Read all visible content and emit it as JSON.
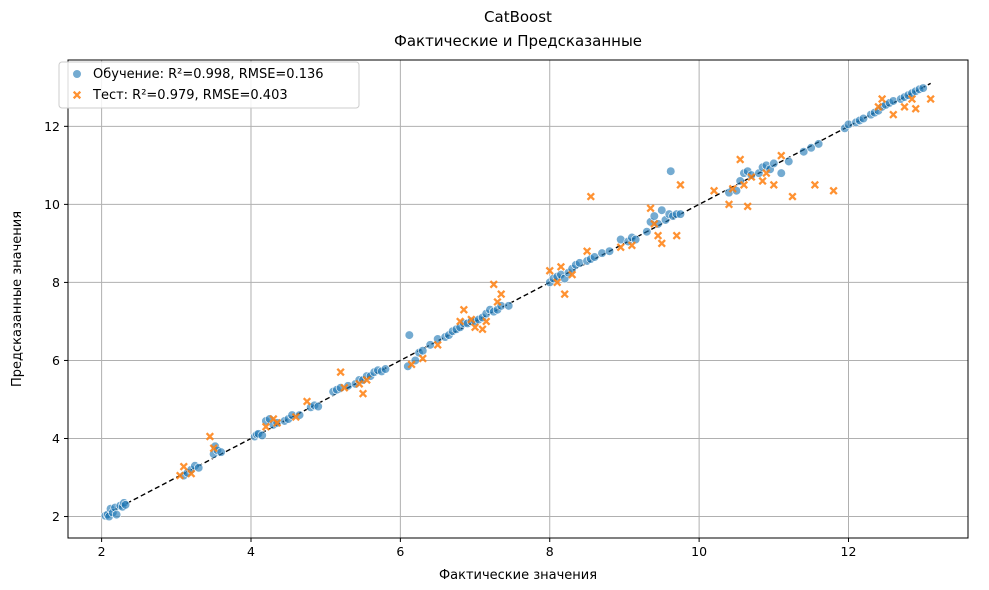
{
  "chart_data": {
    "type": "scatter",
    "title": "CatBoost",
    "subtitle": "Фактические и Предсказанные",
    "xlabel": "Фактические значения",
    "ylabel": "Предсказанные значения",
    "xlim": [
      1.55,
      13.6
    ],
    "ylim": [
      1.45,
      13.7
    ],
    "x_ticks": [
      2,
      4,
      6,
      8,
      10,
      12
    ],
    "y_ticks": [
      2,
      4,
      6,
      8,
      10,
      12
    ],
    "grid": true,
    "legend_position": "top-left",
    "reference_line": {
      "style": "dashed",
      "color": "#000000",
      "x": [
        2.05,
        13.1
      ],
      "y": [
        2.05,
        13.1
      ]
    },
    "series": [
      {
        "name": "Обучение: R²=0.998, RMSE=0.136",
        "marker": "circle",
        "color": "#1f77b4",
        "points": [
          [
            2.05,
            2.02
          ],
          [
            2.08,
            2.05
          ],
          [
            2.1,
            2.0
          ],
          [
            2.12,
            2.2
          ],
          [
            2.15,
            2.1
          ],
          [
            2.18,
            2.23
          ],
          [
            2.2,
            2.05
          ],
          [
            2.25,
            2.28
          ],
          [
            2.28,
            2.25
          ],
          [
            2.3,
            2.35
          ],
          [
            2.32,
            2.3
          ],
          [
            3.1,
            3.05
          ],
          [
            3.15,
            3.12
          ],
          [
            3.2,
            3.2
          ],
          [
            3.25,
            3.3
          ],
          [
            3.3,
            3.25
          ],
          [
            3.5,
            3.6
          ],
          [
            3.52,
            3.8
          ],
          [
            3.55,
            3.7
          ],
          [
            3.6,
            3.65
          ],
          [
            4.05,
            4.05
          ],
          [
            4.08,
            4.1
          ],
          [
            4.1,
            4.12
          ],
          [
            4.15,
            4.08
          ],
          [
            4.2,
            4.45
          ],
          [
            4.25,
            4.5
          ],
          [
            4.3,
            4.35
          ],
          [
            4.35,
            4.4
          ],
          [
            4.45,
            4.45
          ],
          [
            4.5,
            4.5
          ],
          [
            4.55,
            4.6
          ],
          [
            4.65,
            4.6
          ],
          [
            4.8,
            4.8
          ],
          [
            4.85,
            4.85
          ],
          [
            4.9,
            4.82
          ],
          [
            5.1,
            5.2
          ],
          [
            5.15,
            5.25
          ],
          [
            5.2,
            5.3
          ],
          [
            5.3,
            5.35
          ],
          [
            5.4,
            5.4
          ],
          [
            5.45,
            5.5
          ],
          [
            5.5,
            5.5
          ],
          [
            5.55,
            5.6
          ],
          [
            5.6,
            5.6
          ],
          [
            5.65,
            5.7
          ],
          [
            5.7,
            5.75
          ],
          [
            5.75,
            5.72
          ],
          [
            5.8,
            5.78
          ],
          [
            6.1,
            5.85
          ],
          [
            6.12,
            6.65
          ],
          [
            6.2,
            6.0
          ],
          [
            6.25,
            6.2
          ],
          [
            6.3,
            6.25
          ],
          [
            6.4,
            6.4
          ],
          [
            6.5,
            6.55
          ],
          [
            6.6,
            6.6
          ],
          [
            6.65,
            6.65
          ],
          [
            6.7,
            6.75
          ],
          [
            6.75,
            6.8
          ],
          [
            6.8,
            6.85
          ],
          [
            6.85,
            6.95
          ],
          [
            6.9,
            6.95
          ],
          [
            6.95,
            7.0
          ],
          [
            7.0,
            7.0
          ],
          [
            7.05,
            7.05
          ],
          [
            7.1,
            7.1
          ],
          [
            7.15,
            7.2
          ],
          [
            7.2,
            7.3
          ],
          [
            7.25,
            7.25
          ],
          [
            7.3,
            7.3
          ],
          [
            7.35,
            7.4
          ],
          [
            7.45,
            7.4
          ],
          [
            8.0,
            8.0
          ],
          [
            8.05,
            8.1
          ],
          [
            8.1,
            8.15
          ],
          [
            8.15,
            8.2
          ],
          [
            8.2,
            8.1
          ],
          [
            8.25,
            8.25
          ],
          [
            8.3,
            8.35
          ],
          [
            8.35,
            8.45
          ],
          [
            8.4,
            8.5
          ],
          [
            8.5,
            8.55
          ],
          [
            8.55,
            8.6
          ],
          [
            8.6,
            8.65
          ],
          [
            8.7,
            8.75
          ],
          [
            8.8,
            8.8
          ],
          [
            8.95,
            9.1
          ],
          [
            9.05,
            9.05
          ],
          [
            9.1,
            9.15
          ],
          [
            9.15,
            9.1
          ],
          [
            9.3,
            9.3
          ],
          [
            9.35,
            9.55
          ],
          [
            9.4,
            9.7
          ],
          [
            9.45,
            9.5
          ],
          [
            9.5,
            9.85
          ],
          [
            9.55,
            9.6
          ],
          [
            9.6,
            9.75
          ],
          [
            9.62,
            10.85
          ],
          [
            9.65,
            9.7
          ],
          [
            9.7,
            9.75
          ],
          [
            9.75,
            9.75
          ],
          [
            10.4,
            10.3
          ],
          [
            10.5,
            10.35
          ],
          [
            10.55,
            10.6
          ],
          [
            10.6,
            10.8
          ],
          [
            10.65,
            10.85
          ],
          [
            10.7,
            10.75
          ],
          [
            10.8,
            10.8
          ],
          [
            10.85,
            10.95
          ],
          [
            10.9,
            11.0
          ],
          [
            10.95,
            10.9
          ],
          [
            11.0,
            11.05
          ],
          [
            11.1,
            10.8
          ],
          [
            11.2,
            11.1
          ],
          [
            11.4,
            11.35
          ],
          [
            11.5,
            11.45
          ],
          [
            11.6,
            11.55
          ],
          [
            11.95,
            11.95
          ],
          [
            12.0,
            12.05
          ],
          [
            12.1,
            12.1
          ],
          [
            12.15,
            12.15
          ],
          [
            12.2,
            12.2
          ],
          [
            12.3,
            12.3
          ],
          [
            12.35,
            12.35
          ],
          [
            12.4,
            12.4
          ],
          [
            12.45,
            12.5
          ],
          [
            12.5,
            12.55
          ],
          [
            12.55,
            12.6
          ],
          [
            12.6,
            12.65
          ],
          [
            12.7,
            12.7
          ],
          [
            12.75,
            12.75
          ],
          [
            12.8,
            12.8
          ],
          [
            12.85,
            12.85
          ],
          [
            12.9,
            12.9
          ],
          [
            12.95,
            12.95
          ],
          [
            13.0,
            12.98
          ]
        ]
      },
      {
        "name": "Тест: R²=0.979, RMSE=0.403",
        "marker": "x",
        "color": "#ff7f0e",
        "points": [
          [
            3.05,
            3.05
          ],
          [
            3.1,
            3.28
          ],
          [
            3.2,
            3.1
          ],
          [
            3.45,
            4.05
          ],
          [
            3.5,
            3.75
          ],
          [
            4.2,
            4.3
          ],
          [
            4.3,
            4.5
          ],
          [
            4.35,
            4.4
          ],
          [
            4.6,
            4.55
          ],
          [
            4.75,
            4.95
          ],
          [
            5.2,
            5.7
          ],
          [
            5.25,
            5.3
          ],
          [
            5.45,
            5.4
          ],
          [
            5.5,
            5.15
          ],
          [
            5.55,
            5.5
          ],
          [
            6.15,
            5.9
          ],
          [
            6.3,
            6.05
          ],
          [
            6.5,
            6.4
          ],
          [
            6.8,
            7.0
          ],
          [
            6.85,
            7.3
          ],
          [
            6.95,
            7.05
          ],
          [
            7.0,
            6.85
          ],
          [
            7.1,
            6.8
          ],
          [
            7.15,
            7.0
          ],
          [
            7.25,
            7.95
          ],
          [
            7.3,
            7.5
          ],
          [
            7.35,
            7.7
          ],
          [
            8.0,
            8.3
          ],
          [
            8.1,
            8.0
          ],
          [
            8.15,
            8.4
          ],
          [
            8.2,
            7.7
          ],
          [
            8.3,
            8.2
          ],
          [
            8.5,
            8.8
          ],
          [
            8.55,
            10.2
          ],
          [
            8.95,
            8.9
          ],
          [
            9.1,
            8.95
          ],
          [
            9.35,
            9.9
          ],
          [
            9.4,
            9.5
          ],
          [
            9.45,
            9.2
          ],
          [
            9.5,
            9.0
          ],
          [
            9.7,
            9.2
          ],
          [
            9.75,
            10.5
          ],
          [
            10.2,
            10.35
          ],
          [
            10.4,
            10.0
          ],
          [
            10.45,
            10.4
          ],
          [
            10.55,
            11.15
          ],
          [
            10.6,
            10.5
          ],
          [
            10.65,
            9.95
          ],
          [
            10.7,
            10.7
          ],
          [
            10.85,
            10.6
          ],
          [
            10.9,
            10.8
          ],
          [
            11.0,
            10.5
          ],
          [
            11.1,
            11.25
          ],
          [
            11.25,
            10.2
          ],
          [
            11.55,
            10.5
          ],
          [
            11.8,
            10.35
          ],
          [
            12.4,
            12.5
          ],
          [
            12.45,
            12.7
          ],
          [
            12.6,
            12.3
          ],
          [
            12.75,
            12.5
          ],
          [
            12.85,
            12.7
          ],
          [
            12.9,
            12.45
          ],
          [
            13.1,
            12.7
          ]
        ]
      }
    ]
  }
}
